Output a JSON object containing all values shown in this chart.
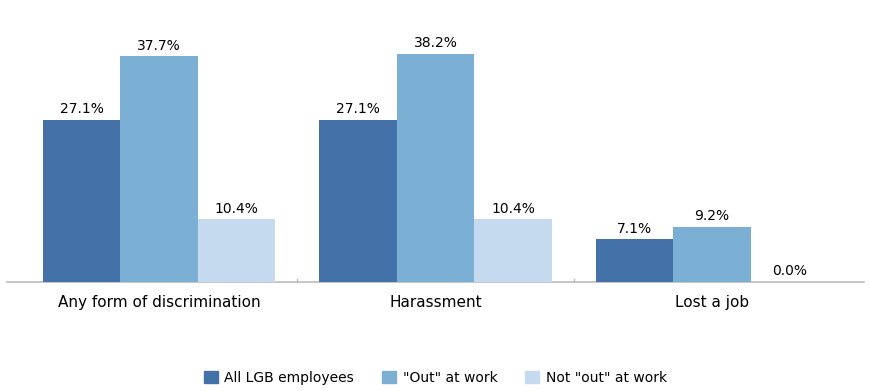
{
  "categories": [
    "Any form of discrimination",
    "Harassment",
    "Lost a job"
  ],
  "series": [
    {
      "label": "All LGB employees",
      "values": [
        27.1,
        27.1,
        7.1
      ],
      "color": "#4472A8"
    },
    {
      "label": "\"Out\" at work",
      "values": [
        37.7,
        38.2,
        9.2
      ],
      "color": "#7BAFD4"
    },
    {
      "label": "Not \"out\" at work",
      "values": [
        10.4,
        10.4,
        0.0
      ],
      "color": "#C5D9EF"
    }
  ],
  "bar_width": 0.28,
  "ylim": [
    0,
    46
  ],
  "label_fontsize": 10,
  "legend_fontsize": 10,
  "tick_fontsize": 11,
  "background_color": "#FFFFFF",
  "spine_color": "#BBBBBB",
  "group_centers": [
    0,
    1,
    2
  ]
}
